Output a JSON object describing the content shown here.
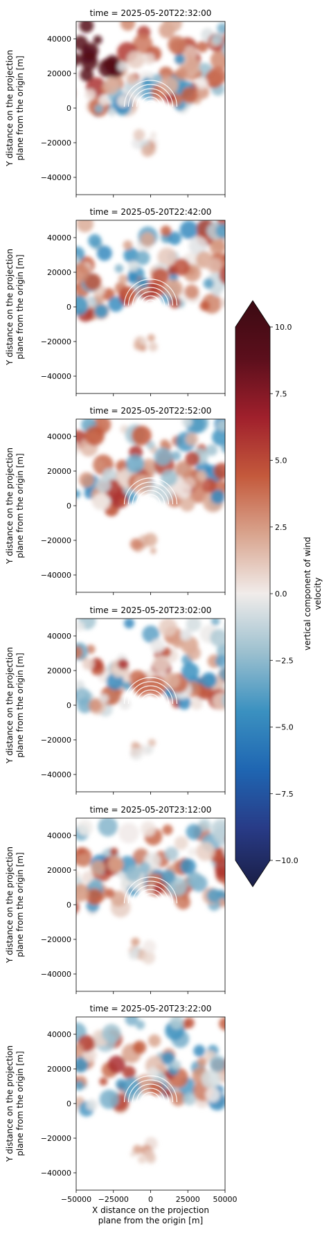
{
  "chart_data": {
    "type": "heatmap",
    "colormap": "balance (blue-white-red)",
    "x_axis": {
      "label_lines": [
        "X distance on the projection",
        "plane from the origin [m]"
      ],
      "range": [
        -50000,
        50000
      ],
      "ticks": [
        -50000,
        -25000,
        0,
        25000,
        50000
      ],
      "tick_labels": [
        "−50000",
        "−25000",
        "0",
        "25000",
        "50000"
      ]
    },
    "y_axis": {
      "label_lines": [
        "Y distance on the projection",
        "plane from the origin [m]"
      ],
      "range": [
        -50000,
        50000
      ],
      "ticks": [
        40000,
        20000,
        0,
        -20000,
        -40000
      ],
      "tick_labels": [
        "40000",
        "20000",
        "0",
        "−20000",
        "−40000"
      ]
    },
    "panels": [
      {
        "title": "time = 2025-05-20T22:32:00"
      },
      {
        "title": "time = 2025-05-20T22:42:00"
      },
      {
        "title": "time = 2025-05-20T22:52:00"
      },
      {
        "title": "time = 2025-05-20T23:02:00"
      },
      {
        "title": "time = 2025-05-20T23:12:00"
      },
      {
        "title": "time = 2025-05-20T23:22:00"
      }
    ],
    "colorbar": {
      "label_lines": [
        "vertical component of wind",
        "velocity"
      ],
      "range": [
        -10,
        10
      ],
      "extend": "both",
      "ticks": [
        10,
        7.5,
        5,
        2.5,
        0,
        -2.5,
        -5,
        -7.5,
        -10
      ],
      "tick_labels": [
        "10.0",
        "7.5",
        "5.0",
        "2.5",
        "0.0",
        "−2.5",
        "−5.0",
        "−7.5",
        "−10.0"
      ],
      "colors": [
        "#1a1e45",
        "#283b87",
        "#1f66b2",
        "#3b91c0",
        "#9cc0cf",
        "#f1ecea",
        "#d9a58f",
        "#c45a3c",
        "#a0202c",
        "#5c0f1c",
        "#3b0a12"
      ]
    }
  }
}
